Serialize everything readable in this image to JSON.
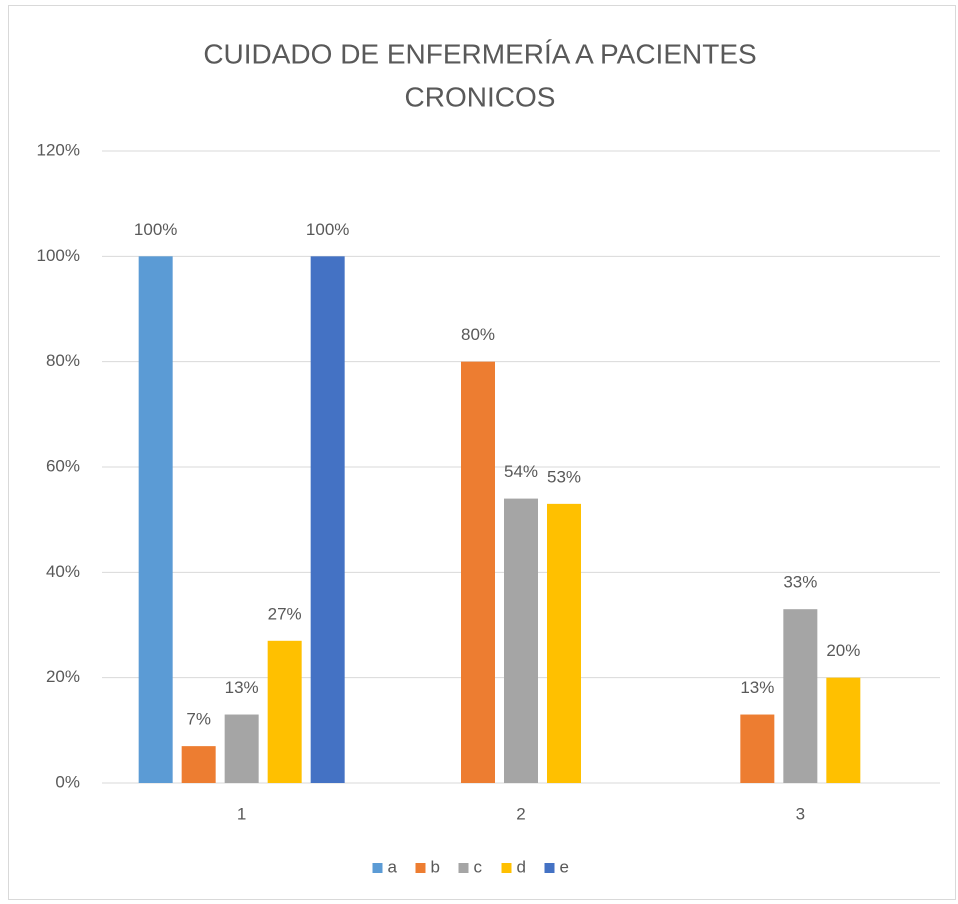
{
  "chart_data": {
    "type": "bar",
    "title": [
      "CUIDADO DE ENFERMERÍA A PACIENTES",
      "CRONICOS"
    ],
    "categories": [
      "1",
      "2",
      "3"
    ],
    "series": [
      {
        "name": "a",
        "color": "#5b9bd5",
        "values": [
          100,
          null,
          null
        ],
        "value_labels": [
          "100%",
          null,
          null
        ]
      },
      {
        "name": "b",
        "color": "#ed7d31",
        "values": [
          7,
          80,
          13
        ],
        "value_labels": [
          "7%",
          "80%",
          "13%"
        ]
      },
      {
        "name": "c",
        "color": "#a5a5a5",
        "values": [
          13,
          54,
          33
        ],
        "value_labels": [
          "13%",
          "54%",
          "33%"
        ]
      },
      {
        "name": "d",
        "color": "#ffc000",
        "values": [
          27,
          53,
          20
        ],
        "value_labels": [
          "27%",
          "53%",
          "20%"
        ]
      },
      {
        "name": "e",
        "color": "#4472c4",
        "values": [
          100,
          null,
          null
        ],
        "value_labels": [
          "100%",
          null,
          null
        ]
      }
    ],
    "ylim": [
      0,
      120
    ],
    "yticks": [
      {
        "value": 0,
        "label": "0%"
      },
      {
        "value": 20,
        "label": "20%"
      },
      {
        "value": 40,
        "label": "40%"
      },
      {
        "value": 60,
        "label": "60%"
      },
      {
        "value": 80,
        "label": "80%"
      },
      {
        "value": 100,
        "label": "100%"
      },
      {
        "value": 120,
        "label": "120%"
      }
    ],
    "grid": true,
    "legend": "bottom"
  }
}
